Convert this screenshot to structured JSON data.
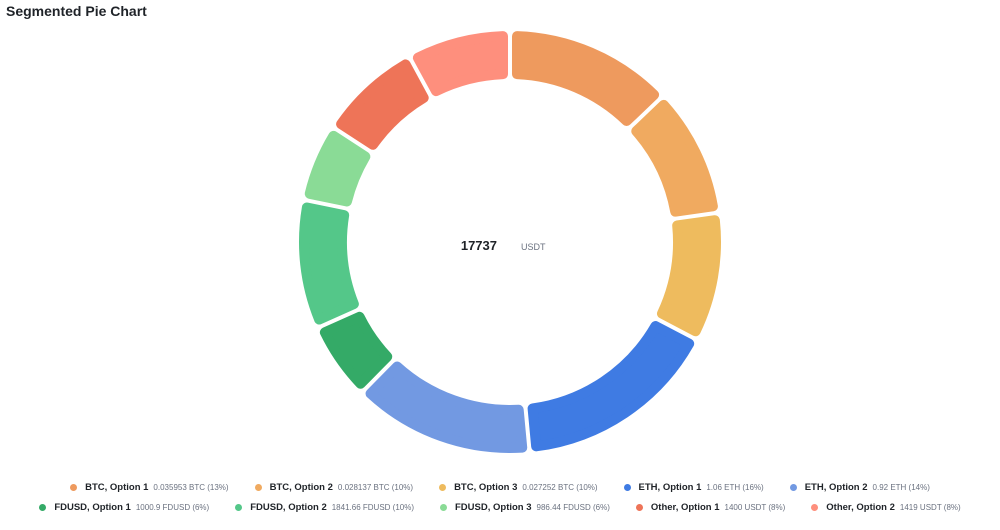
{
  "title": "Segmented Pie Chart",
  "chart_data": {
    "type": "pie",
    "variant": "segmented-donut",
    "center": {
      "value": "17737",
      "unit": "USDT"
    },
    "legend_placement": "bottom",
    "slices": [
      {
        "name": "BTC, Option 1",
        "detail": "0.035953 BTC (13%)",
        "percent": 13,
        "color": "#ee9a5e"
      },
      {
        "name": "BTC, Option 2",
        "detail": "0.028137 BTC (10%)",
        "percent": 10,
        "color": "#f0aa60"
      },
      {
        "name": "BTC, Option 3",
        "detail": "0.027252 BTC (10%)",
        "percent": 10,
        "color": "#eebb5e"
      },
      {
        "name": "ETH, Option 1",
        "detail": "1.06 ETH (16%)",
        "percent": 16,
        "color": "#3f7be3"
      },
      {
        "name": "ETH, Option 2",
        "detail": "0.92 ETH (14%)",
        "percent": 14,
        "color": "#7299e2"
      },
      {
        "name": "FDUSD, Option 1",
        "detail": "1000.9 FDUSD (6%)",
        "percent": 6,
        "color": "#34aa67"
      },
      {
        "name": "FDUSD, Option 2",
        "detail": "1841.66 FDUSD (10%)",
        "percent": 10,
        "color": "#54c789"
      },
      {
        "name": "FDUSD, Option 3",
        "detail": "986.44 FDUSD (6%)",
        "percent": 6,
        "color": "#8adb96"
      },
      {
        "name": "Other, Option 1",
        "detail": "1400 USDT (8%)",
        "percent": 8,
        "color": "#ee7458"
      },
      {
        "name": "Other, Option 2",
        "detail": "1419 USDT (8%)",
        "percent": 8,
        "color": "#fe8f7d"
      }
    ]
  }
}
